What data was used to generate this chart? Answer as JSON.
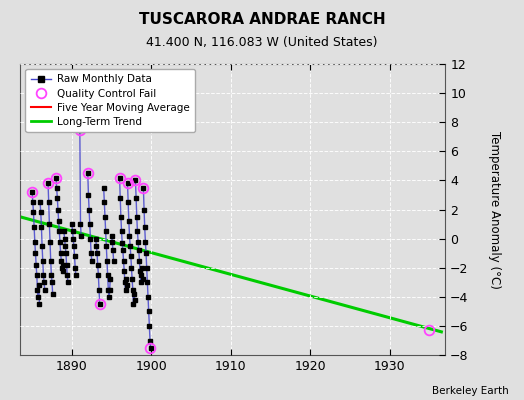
{
  "title": "TUSCARORA ANDRAE RANCH",
  "subtitle": "41.400 N, 116.083 W (United States)",
  "ylabel": "Temperature Anomaly (°C)",
  "credit": "Berkeley Earth",
  "xlim": [
    1883.5,
    1937
  ],
  "ylim": [
    -8,
    12
  ],
  "yticks": [
    -8,
    -6,
    -4,
    -2,
    0,
    2,
    4,
    6,
    8,
    10,
    12
  ],
  "xticks": [
    1890,
    1900,
    1910,
    1920,
    1930
  ],
  "bg_color": "#e0e0e0",
  "fig_color": "#e0e0e0",
  "trend_x": [
    1883.5,
    1936.5
  ],
  "trend_y": [
    1.5,
    -6.4
  ],
  "raw_monthly": [
    {
      "year": 1885,
      "months": [
        3.2,
        2.5,
        1.8,
        0.8,
        -0.2,
        -1.0,
        -1.8,
        -2.5,
        -3.5,
        -4.0,
        -3.2,
        -4.5
      ]
    },
    {
      "year": 1886,
      "months": [
        2.5,
        1.8,
        0.8,
        -0.5,
        -1.5,
        -2.5,
        -3.0,
        -3.5
      ]
    },
    {
      "year": 1887,
      "months": [
        3.8,
        2.5,
        1.0,
        -0.2,
        -1.5,
        -2.5,
        -3.0,
        -3.8
      ]
    },
    {
      "year": 1888,
      "months": [
        4.2,
        3.5,
        2.8,
        2.0,
        1.2,
        0.5,
        -0.2,
        -1.0,
        -1.5,
        -2.0,
        -1.8,
        -2.2
      ]
    },
    {
      "year": 1889,
      "months": [
        0.5,
        0.0,
        -0.5,
        -1.0,
        -1.8,
        -2.5,
        -3.0
      ]
    },
    {
      "year": 1890,
      "months": [
        1.0,
        0.5,
        0.0,
        -0.5,
        -1.2,
        -2.0,
        -2.5
      ]
    },
    {
      "year": 1891,
      "months": [
        7.5,
        1.0,
        0.2
      ]
    },
    {
      "year": 1892,
      "months": [
        4.5,
        3.0,
        2.0,
        1.0,
        0.0,
        -1.0,
        -1.5
      ]
    },
    {
      "year": 1893,
      "months": [
        0.0,
        -0.5,
        -1.0,
        -1.8,
        -2.5,
        -3.5,
        -4.5
      ]
    },
    {
      "year": 1894,
      "months": [
        3.5,
        2.5,
        1.5,
        0.5,
        -0.5,
        -1.5,
        -2.5,
        -3.5,
        -4.0,
        -3.5,
        -2.8
      ]
    },
    {
      "year": 1895,
      "months": [
        0.2,
        -0.2,
        -0.8,
        -1.5
      ]
    },
    {
      "year": 1896,
      "months": [
        4.2,
        2.8,
        1.5,
        0.5,
        -0.3,
        -0.8,
        -1.5,
        -2.2,
        -3.0,
        -3.5,
        -2.8,
        -3.2
      ]
    },
    {
      "year": 1897,
      "months": [
        3.8,
        2.5,
        1.2,
        0.2,
        -0.5,
        -1.2,
        -2.0,
        -2.8,
        -3.5,
        -4.5,
        -3.8,
        -4.2
      ]
    },
    {
      "year": 1898,
      "months": [
        4.0,
        2.8,
        1.5,
        0.5,
        -0.2,
        -0.8,
        -1.5,
        -2.2,
        -3.0,
        -2.5,
        -2.0,
        -2.8
      ]
    },
    {
      "year": 1899,
      "months": [
        3.5,
        2.0,
        0.8,
        -0.2,
        -1.0,
        -2.0,
        -3.0,
        -4.0,
        -5.0,
        -6.0,
        -7.0,
        -7.5
      ]
    }
  ],
  "qc_fail_points": [
    [
      1885.0,
      3.2
    ],
    [
      1887.0,
      3.8
    ],
    [
      1888.0,
      4.2
    ],
    [
      1891.0,
      7.5
    ],
    [
      1892.0,
      4.5
    ],
    [
      1893.5,
      -4.5
    ],
    [
      1896.0,
      4.2
    ],
    [
      1897.0,
      3.8
    ],
    [
      1898.0,
      4.0
    ],
    [
      1899.83,
      -7.5
    ],
    [
      1899.0,
      3.5
    ],
    [
      1935.0,
      -6.3
    ]
  ]
}
